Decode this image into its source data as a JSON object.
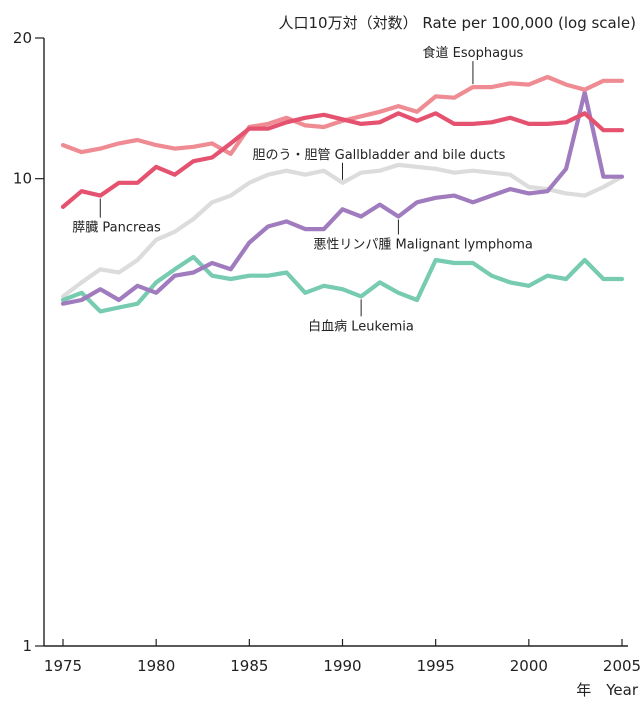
{
  "chart_data": {
    "type": "line",
    "ylabel": "人口10万対（対数） Rate per 100,000 (log scale)",
    "xlabel": "年　Year",
    "yscale": "log",
    "ylim": [
      1,
      20
    ],
    "xlim": [
      1975,
      2005
    ],
    "y_ticks": [
      {
        "value": 1,
        "label": "1"
      },
      {
        "value": 10,
        "label": "10"
      },
      {
        "value": 20,
        "label": "20"
      }
    ],
    "x_ticks": [
      1975,
      1980,
      1985,
      1990,
      1995,
      2000,
      2005
    ],
    "x_tick_labels": [
      "1975",
      "1980",
      "1985",
      "1990",
      "1995",
      "2000",
      "2005"
    ],
    "grid": false,
    "x": [
      1975,
      1976,
      1977,
      1978,
      1979,
      1980,
      1981,
      1982,
      1983,
      1984,
      1985,
      1986,
      1987,
      1988,
      1989,
      1990,
      1991,
      1992,
      1993,
      1994,
      1995,
      1996,
      1997,
      1998,
      1999,
      2000,
      2001,
      2002,
      2003,
      2004,
      2005
    ],
    "series": [
      {
        "name": "食道 Esophagus",
        "color": "#ef8c93",
        "values": [
          11.8,
          11.4,
          11.6,
          11.9,
          12.1,
          11.8,
          11.6,
          11.7,
          11.9,
          11.3,
          12.9,
          13.1,
          13.5,
          13.0,
          12.9,
          13.3,
          13.6,
          13.9,
          14.3,
          13.9,
          15.0,
          14.9,
          15.7,
          15.7,
          16.0,
          15.9,
          16.5,
          15.9,
          15.5,
          16.2,
          16.2
        ]
      },
      {
        "name": "膵臓 Pancreas",
        "color": "#e5526f",
        "values": [
          8.7,
          9.4,
          9.2,
          9.8,
          9.8,
          10.6,
          10.2,
          10.9,
          11.1,
          11.9,
          12.8,
          12.8,
          13.2,
          13.5,
          13.7,
          13.4,
          13.1,
          13.2,
          13.8,
          13.3,
          13.8,
          13.1,
          13.1,
          13.2,
          13.5,
          13.1,
          13.1,
          13.2,
          13.8,
          12.7,
          12.7
        ]
      },
      {
        "name": "胆のう・胆管 Gallbladder and bile ducts",
        "color": "#dcdcdc",
        "values": [
          5.6,
          6.0,
          6.4,
          6.3,
          6.7,
          7.4,
          7.7,
          8.2,
          8.9,
          9.2,
          9.8,
          10.2,
          10.4,
          10.2,
          10.4,
          9.8,
          10.3,
          10.4,
          10.7,
          10.6,
          10.5,
          10.3,
          10.4,
          10.3,
          10.2,
          9.6,
          9.5,
          9.3,
          9.2,
          9.6,
          10.1
        ]
      },
      {
        "name": "悪性リンパ腫 Malignant lymphoma",
        "color": "#a07cbf",
        "values": [
          5.4,
          5.5,
          5.8,
          5.5,
          5.9,
          5.7,
          6.2,
          6.3,
          6.6,
          6.4,
          7.3,
          7.9,
          8.1,
          7.8,
          7.8,
          8.6,
          8.3,
          8.8,
          8.3,
          8.9,
          9.1,
          9.2,
          8.9,
          9.2,
          9.5,
          9.3,
          9.4,
          10.5,
          15.3,
          10.1,
          10.1
        ]
      },
      {
        "name": "白血病 Leukemia",
        "color": "#76cbb1",
        "values": [
          5.5,
          5.7,
          5.2,
          5.3,
          5.4,
          6.0,
          6.4,
          6.8,
          6.2,
          6.1,
          6.2,
          6.2,
          6.3,
          5.7,
          5.9,
          5.8,
          5.6,
          6.0,
          5.7,
          5.5,
          6.7,
          6.6,
          6.6,
          6.2,
          6.0,
          5.9,
          6.2,
          6.1,
          6.7,
          6.1,
          6.1
        ]
      }
    ],
    "annotations": [
      {
        "series": 0,
        "text": "食道 Esophagus",
        "x": 1997
      },
      {
        "series": 1,
        "text": "膵臓 Pancreas",
        "x": 1977
      },
      {
        "series": 2,
        "text": "胆のう・胆管 Gallbladder and bile ducts",
        "x": 1990
      },
      {
        "series": 3,
        "text": "悪性リンパ腫 Malignant lymphoma",
        "x": 1993
      },
      {
        "series": 4,
        "text": "白血病 Leukemia",
        "x": 1991
      }
    ]
  }
}
